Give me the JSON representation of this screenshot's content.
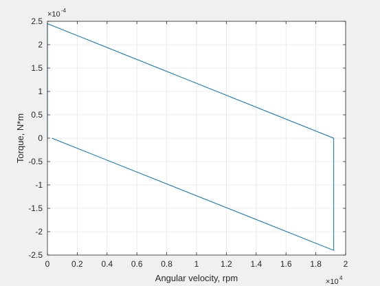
{
  "window": {
    "background": "#f0f0f0"
  },
  "chart_data": {
    "type": "line",
    "title": "",
    "xlabel": "Angular velocity, rpm",
    "ylabel": "Torque, N*m",
    "x_multiplier_label": "×10",
    "x_multiplier_exponent": "4",
    "y_multiplier_label": "×10",
    "y_multiplier_exponent": "-4",
    "xlim": [
      0,
      20000
    ],
    "ylim": [
      -0.00025,
      0.00025
    ],
    "x_ticks": [
      0,
      2000,
      4000,
      6000,
      8000,
      10000,
      12000,
      14000,
      16000,
      18000,
      20000
    ],
    "x_tick_labels": [
      "0",
      "0.2",
      "0.4",
      "0.6",
      "0.8",
      "1",
      "1.2",
      "1.4",
      "1.6",
      "1.8",
      "2"
    ],
    "y_ticks": [
      -0.00025,
      -0.0002,
      -0.00015,
      -0.0001,
      -5e-05,
      0,
      5e-05,
      0.0001,
      0.00015,
      0.0002,
      0.00025
    ],
    "y_tick_labels": [
      "-2.5",
      "-2",
      "-1.5",
      "-1",
      "-0.5",
      "0",
      "0.5",
      "1",
      "1.5",
      "2",
      "2.5"
    ],
    "grid": true,
    "series": [
      {
        "color": "#0072bd",
        "x": [
          300,
          19200,
          19200,
          0,
          0
        ],
        "y": [
          0.0,
          -0.00024,
          0.0,
          0.000245,
          0.0
        ]
      }
    ]
  }
}
